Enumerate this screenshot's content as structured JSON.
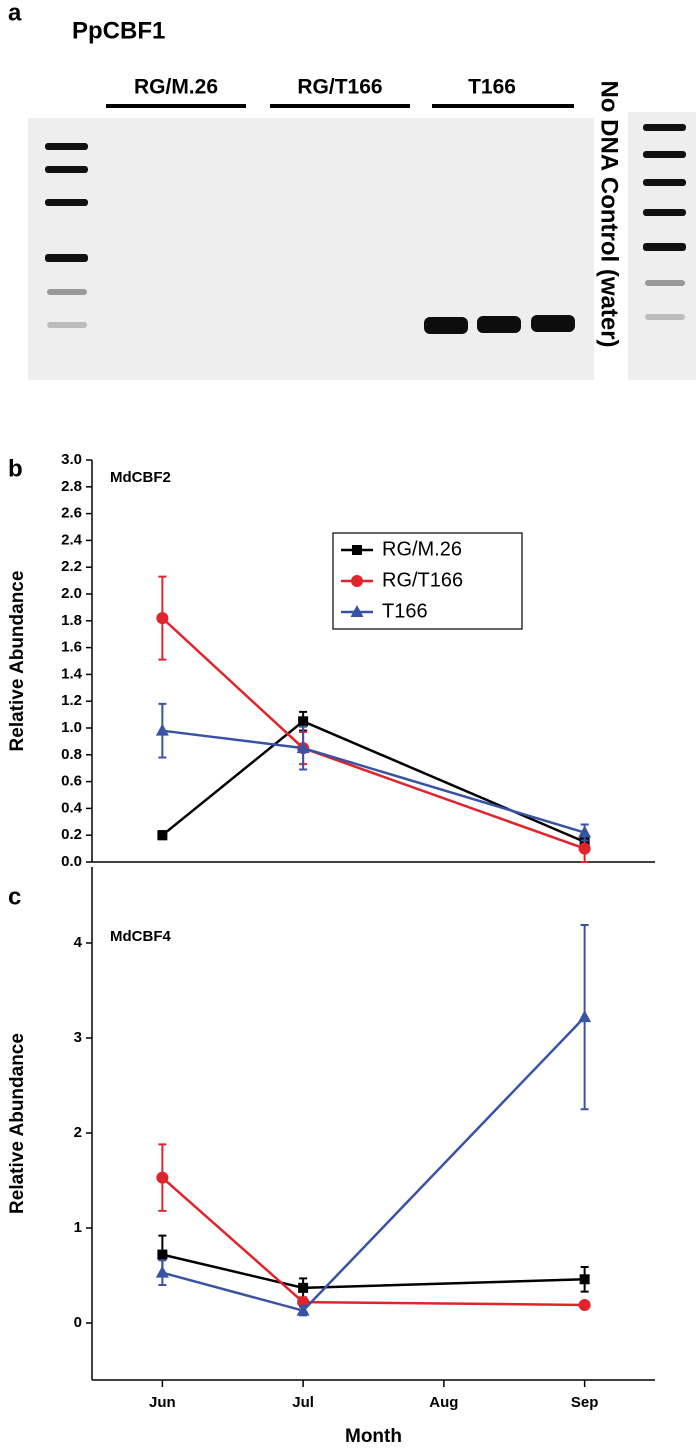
{
  "gel": {
    "panel": "a",
    "title": "PpCBF1",
    "lanes": [
      "RG/M.26",
      "RG/T166",
      "T166"
    ],
    "control": "No DNA Control (water)"
  },
  "chart_data": [
    {
      "type": "line",
      "panel": "b",
      "title": "MdCBF2",
      "ylabel": "Relative Abundance",
      "ylim": [
        0,
        3
      ],
      "yticks": [
        {
          "value": 0,
          "label": "0.0"
        },
        0.2,
        0.4,
        0.6,
        0.8,
        {
          "value": 1,
          "label": "1.0"
        },
        1.2,
        1.4,
        1.6,
        1.8,
        {
          "value": 2,
          "label": "2.0"
        },
        2.2,
        2.4,
        2.6,
        2.8,
        {
          "value": 3,
          "label": "3.0"
        }
      ],
      "legend": true,
      "series": [
        {
          "name": "RG/M.26",
          "color": "#000000",
          "marker": "square",
          "x": [
            "Jun",
            "Jul",
            "Sep"
          ],
          "values": [
            0.2,
            1.05,
            0.15
          ],
          "errors": [
            0.03,
            0.07,
            0.05
          ]
        },
        {
          "name": "RG/T166",
          "color": "#e0242b",
          "marker": "circle",
          "x": [
            "Jun",
            "Jul",
            "Sep"
          ],
          "values": [
            1.82,
            0.85,
            0.1
          ],
          "errors": [
            0.31,
            0.12,
            0.1
          ]
        },
        {
          "name": "T166",
          "color": "#3953a4",
          "marker": "triangle",
          "x": [
            "Jun",
            "Jul",
            "Sep"
          ],
          "values": [
            0.98,
            0.85,
            0.22
          ],
          "errors": [
            0.2,
            0.16,
            0.06
          ]
        }
      ]
    },
    {
      "type": "line",
      "panel": "c",
      "title": "MdCBF4",
      "ylabel": "Relative Abundance",
      "xlabel": "Month",
      "categories": [
        "Jun",
        "Jul",
        "Aug",
        "Sep"
      ],
      "ylim": [
        -0.6,
        4.8
      ],
      "yticks": [
        0,
        1,
        2,
        3,
        4
      ],
      "legend": false,
      "series": [
        {
          "color": "#000000",
          "marker": "square",
          "x": [
            "Jun",
            "Jul",
            "Sep"
          ],
          "values": [
            0.72,
            0.37,
            0.46
          ],
          "errors": [
            0.2,
            0.1,
            0.13
          ]
        },
        {
          "color": "#e0242b",
          "marker": "circle",
          "x": [
            "Jun",
            "Jul",
            "Sep"
          ],
          "values": [
            1.53,
            0.22,
            0.19
          ],
          "errors": [
            0.35,
            0.05,
            0.03
          ]
        },
        {
          "color": "#3953a4",
          "marker": "triangle",
          "x": [
            "Jun",
            "Jul",
            "Sep"
          ],
          "values": [
            0.53,
            0.13,
            3.22
          ],
          "errors": [
            0.13,
            0.05,
            0.97
          ]
        }
      ]
    }
  ]
}
